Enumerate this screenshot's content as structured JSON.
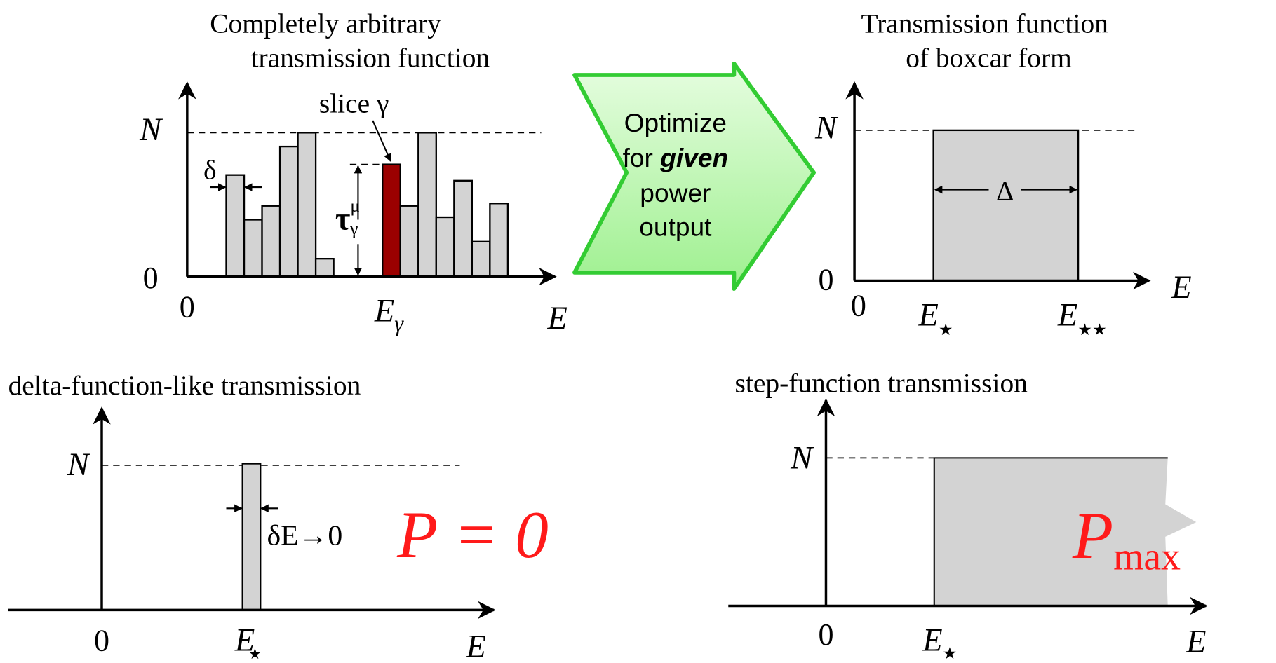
{
  "panels": {
    "arbitrary": {
      "title": [
        "Completely arbitrary",
        "transmission function"
      ],
      "y_top": "N",
      "y_zero": "0",
      "x_zero": "0",
      "x_axis": "E",
      "slice_label": "slice γ",
      "width_label": "δ",
      "energy": "E",
      "energy_sub": "γ",
      "tau": "τ",
      "tau_sup": "μ",
      "tau_sub": "γ"
    },
    "optimize": {
      "lines": [
        "Optimize",
        "for",
        "given",
        "power",
        "output"
      ]
    },
    "boxcar": {
      "title": [
        "Transmission function",
        "of boxcar form"
      ],
      "y_top": "N",
      "y_zero": "0",
      "x_zero": "0",
      "x_axis": "E",
      "width_label": "Δ",
      "e1": "E",
      "e1_sub": "★",
      "e2": "E",
      "e2_sub": "★★"
    },
    "delta": {
      "title": "delta-function-like transmission",
      "y_top": "N",
      "x_zero": "0",
      "x_axis": "E",
      "e1": "E",
      "e1_sub": "★",
      "width_label": "δE→0",
      "power": "P = 0"
    },
    "step": {
      "title": "step-function transmission",
      "y_top": "N",
      "x_zero": "0",
      "x_axis": "E",
      "e1": "E",
      "e1_sub": "★",
      "power": "P",
      "power_sub": "max"
    }
  }
}
